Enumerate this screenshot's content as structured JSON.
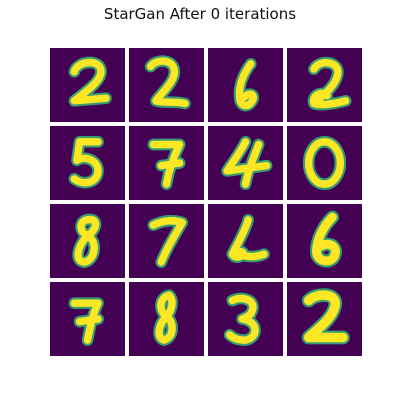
{
  "figure": {
    "title": "StarGan After 0 iterations",
    "colors": {
      "background": "#440154",
      "stroke": "#fde725",
      "edge": "#35b779"
    }
  },
  "grid": {
    "rows": 4,
    "cols": 4,
    "digits": [
      [
        "2",
        "2",
        "6",
        "2"
      ],
      [
        "5",
        "7",
        "4",
        "0"
      ],
      [
        "8",
        "7",
        "2",
        "6"
      ],
      [
        "7",
        "8",
        "3",
        "2"
      ]
    ]
  }
}
